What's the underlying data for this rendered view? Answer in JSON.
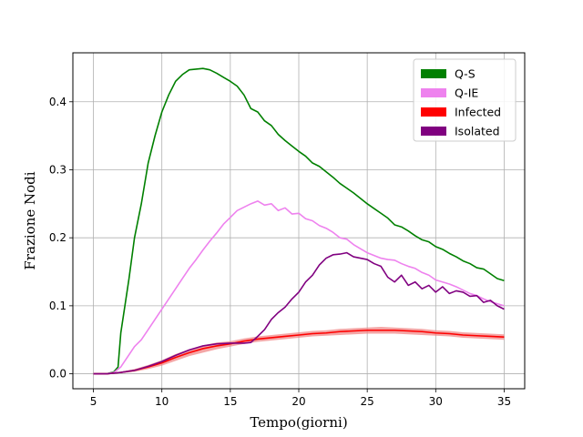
{
  "chart_data": {
    "type": "line",
    "xlabel": "Tempo(giorni)",
    "ylabel": "Frazione Nodi",
    "xlim": [
      3.5,
      36.5
    ],
    "ylim": [
      -0.022,
      0.472
    ],
    "xticks": [
      5,
      10,
      15,
      20,
      25,
      30,
      35
    ],
    "xtick_labels": [
      "5",
      "10",
      "15",
      "20",
      "25",
      "30",
      "35"
    ],
    "yticks": [
      0.0,
      0.1,
      0.2,
      0.3,
      0.4
    ],
    "ytick_labels": [
      "0.0",
      "0.1",
      "0.2",
      "0.3",
      "0.4"
    ],
    "grid": true,
    "legend_position": "top-right",
    "series": [
      {
        "name": "Q-S",
        "color": "#008000",
        "x": [
          5,
          6,
          6.5,
          6.8,
          7,
          7.3,
          7.6,
          8,
          8.5,
          9,
          9.5,
          10,
          10.5,
          11,
          11.5,
          12,
          12.5,
          13,
          13.5,
          14,
          14.5,
          15,
          15.5,
          16,
          16.5,
          17,
          17.5,
          18,
          18.5,
          19,
          19.5,
          20,
          20.5,
          21,
          21.5,
          22,
          22.5,
          23,
          23.5,
          24,
          24.5,
          25,
          25.5,
          26,
          26.5,
          27,
          27.5,
          28,
          28.5,
          29,
          29.5,
          30,
          30.5,
          31,
          31.5,
          32,
          32.5,
          33,
          33.5,
          34,
          34.5,
          35
        ],
        "values": [
          0,
          0,
          0.003,
          0.01,
          0.06,
          0.1,
          0.14,
          0.2,
          0.25,
          0.31,
          0.35,
          0.385,
          0.41,
          0.43,
          0.44,
          0.447,
          0.448,
          0.449,
          0.447,
          0.442,
          0.436,
          0.43,
          0.423,
          0.41,
          0.39,
          0.385,
          0.372,
          0.365,
          0.352,
          0.343,
          0.335,
          0.327,
          0.32,
          0.31,
          0.305,
          0.297,
          0.289,
          0.28,
          0.273,
          0.266,
          0.258,
          0.25,
          0.243,
          0.236,
          0.229,
          0.219,
          0.216,
          0.21,
          0.203,
          0.197,
          0.194,
          0.187,
          0.183,
          0.177,
          0.172,
          0.166,
          0.162,
          0.156,
          0.154,
          0.147,
          0.14,
          0.137
        ]
      },
      {
        "name": "Q-IE",
        "color": "#ee82ee",
        "x": [
          5,
          6,
          6.5,
          7,
          7.5,
          8,
          8.5,
          9,
          9.5,
          10,
          10.5,
          11,
          11.5,
          12,
          12.5,
          13,
          13.5,
          14,
          14.5,
          15,
          15.5,
          16,
          16.5,
          17,
          17.5,
          18,
          18.5,
          19,
          19.5,
          20,
          20.5,
          21,
          21.5,
          22,
          22.5,
          23,
          23.5,
          24,
          24.5,
          25,
          25.5,
          26,
          26.5,
          27,
          27.5,
          28,
          28.5,
          29,
          29.5,
          30,
          30.5,
          31,
          31.5,
          32,
          32.5,
          33,
          33.5,
          34,
          34.5,
          35
        ],
        "values": [
          0,
          0,
          0.002,
          0.01,
          0.025,
          0.04,
          0.05,
          0.065,
          0.08,
          0.095,
          0.11,
          0.125,
          0.14,
          0.155,
          0.168,
          0.182,
          0.195,
          0.207,
          0.22,
          0.23,
          0.24,
          0.245,
          0.25,
          0.254,
          0.248,
          0.25,
          0.24,
          0.244,
          0.235,
          0.236,
          0.228,
          0.225,
          0.218,
          0.214,
          0.208,
          0.2,
          0.198,
          0.19,
          0.184,
          0.178,
          0.174,
          0.17,
          0.168,
          0.167,
          0.162,
          0.158,
          0.155,
          0.149,
          0.145,
          0.138,
          0.135,
          0.132,
          0.128,
          0.123,
          0.118,
          0.115,
          0.11,
          0.106,
          0.103,
          0.1
        ]
      },
      {
        "name": "Infected",
        "color": "#ff0000",
        "band_color": "#f08080",
        "x": [
          5,
          6,
          7,
          8,
          9,
          10,
          11,
          12,
          13,
          14,
          15,
          16,
          17,
          18,
          19,
          20,
          21,
          22,
          23,
          24,
          25,
          26,
          27,
          28,
          29,
          30,
          31,
          32,
          33,
          34,
          35
        ],
        "values": [
          0,
          0,
          0.002,
          0.005,
          0.01,
          0.016,
          0.024,
          0.031,
          0.037,
          0.041,
          0.044,
          0.048,
          0.051,
          0.053,
          0.055,
          0.057,
          0.059,
          0.06,
          0.062,
          0.063,
          0.064,
          0.064,
          0.064,
          0.063,
          0.062,
          0.06,
          0.059,
          0.057,
          0.056,
          0.055,
          0.054
        ],
        "lower": [
          0,
          0,
          0.001,
          0.003,
          0.007,
          0.012,
          0.019,
          0.026,
          0.031,
          0.036,
          0.04,
          0.044,
          0.047,
          0.049,
          0.051,
          0.053,
          0.055,
          0.056,
          0.057,
          0.058,
          0.059,
          0.059,
          0.059,
          0.058,
          0.057,
          0.056,
          0.055,
          0.053,
          0.052,
          0.051,
          0.05
        ],
        "upper": [
          0,
          0,
          0.003,
          0.007,
          0.013,
          0.02,
          0.029,
          0.036,
          0.042,
          0.046,
          0.048,
          0.052,
          0.055,
          0.057,
          0.059,
          0.061,
          0.063,
          0.064,
          0.066,
          0.067,
          0.068,
          0.069,
          0.068,
          0.067,
          0.066,
          0.064,
          0.063,
          0.061,
          0.06,
          0.059,
          0.058
        ]
      },
      {
        "name": "Isolated",
        "color": "#800080",
        "x": [
          5,
          6,
          7,
          8,
          9,
          10,
          11,
          12,
          13,
          14,
          15,
          16,
          16.5,
          17,
          17.5,
          18,
          18.5,
          19,
          19.5,
          20,
          20.5,
          21,
          21.5,
          22,
          22.5,
          23,
          23.5,
          24,
          24.5,
          25,
          25.5,
          26,
          26.5,
          27,
          27.5,
          28,
          28.5,
          29,
          29.5,
          30,
          30.5,
          31,
          31.5,
          32,
          32.5,
          33,
          33.5,
          34,
          34.5,
          35
        ],
        "values": [
          0,
          0,
          0.002,
          0.005,
          0.011,
          0.018,
          0.027,
          0.035,
          0.041,
          0.044,
          0.045,
          0.045,
          0.046,
          0.055,
          0.065,
          0.08,
          0.09,
          0.098,
          0.11,
          0.12,
          0.135,
          0.145,
          0.16,
          0.17,
          0.175,
          0.176,
          0.178,
          0.172,
          0.17,
          0.168,
          0.162,
          0.158,
          0.142,
          0.135,
          0.145,
          0.13,
          0.135,
          0.125,
          0.13,
          0.12,
          0.128,
          0.118,
          0.122,
          0.12,
          0.114,
          0.115,
          0.105,
          0.108,
          0.1,
          0.095
        ]
      }
    ]
  }
}
